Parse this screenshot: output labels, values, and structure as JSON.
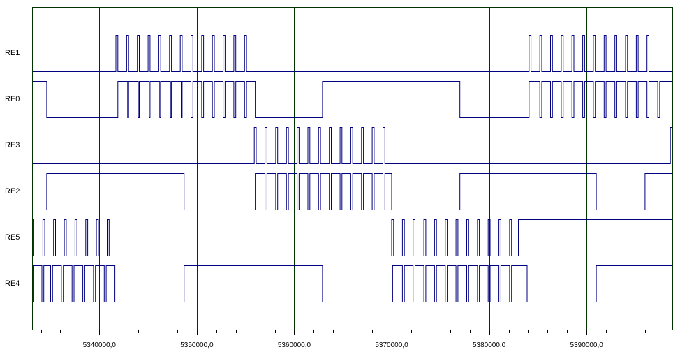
{
  "colors": {
    "background": "#ffffff",
    "signal": "#000080",
    "grid": "#003300",
    "frame": "#003300",
    "text": "#000000"
  },
  "chart_data": {
    "type": "line",
    "title": "",
    "xlabel": "",
    "ylabel": "",
    "grid": true,
    "xlim": [
      5333100,
      5398800
    ],
    "x_ticks": [
      5340000,
      5350000,
      5360000,
      5370000,
      5380000,
      5390000
    ],
    "x_tick_labels": [
      "5340000,0",
      "5350000,0",
      "5360000,0",
      "5370000,0",
      "5380000,0",
      "5390000,0"
    ],
    "series": [
      {
        "name": "RE1",
        "initial": 0,
        "transitions": [
          5341700,
          5341900,
          5342800,
          5343000,
          5343900,
          5344100,
          5345000,
          5345200,
          5346100,
          5346300,
          5347200,
          5347400,
          5348300,
          5348500,
          5349400,
          5349600,
          5350500,
          5350700,
          5351600,
          5351800,
          5352700,
          5352900,
          5353800,
          5354000,
          5354900,
          5355100,
          5384100,
          5384300,
          5385200,
          5385400,
          5386300,
          5386500,
          5387400,
          5387600,
          5388500,
          5388700,
          5389600,
          5389800,
          5390700,
          5390900,
          5391800,
          5392000,
          5392900,
          5393100,
          5394000,
          5394200,
          5395100,
          5395300,
          5396200,
          5396400
        ]
      },
      {
        "name": "RE0",
        "initial": 1,
        "transitions": [
          5334600,
          5341900,
          5342900,
          5343000,
          5344000,
          5344100,
          5345100,
          5345200,
          5346200,
          5346300,
          5347300,
          5347400,
          5348400,
          5348500,
          5349400,
          5349600,
          5350500,
          5350700,
          5351600,
          5351800,
          5352700,
          5352900,
          5353800,
          5354000,
          5354900,
          5355100,
          5356000,
          5362900,
          5377000,
          5384100,
          5385200,
          5385400,
          5386300,
          5386500,
          5387400,
          5387600,
          5388500,
          5388700,
          5389600,
          5389800,
          5390700,
          5390900,
          5391800,
          5392000,
          5392900,
          5393100,
          5394000,
          5394200,
          5395100,
          5395300,
          5396200,
          5396400,
          5397300,
          5397500
        ]
      },
      {
        "name": "RE3",
        "initial": 0,
        "transitions": [
          5355900,
          5356100,
          5357000,
          5357200,
          5358100,
          5358300,
          5359200,
          5359400,
          5360300,
          5360500,
          5361400,
          5361600,
          5362500,
          5362700,
          5363600,
          5363800,
          5364700,
          5364900,
          5365800,
          5366000,
          5366900,
          5367100,
          5368000,
          5368200,
          5369100,
          5369300,
          5398600,
          5398800
        ]
      },
      {
        "name": "RE2",
        "initial": 0,
        "transitions": [
          5334600,
          5348700,
          5356000,
          5357000,
          5357200,
          5358100,
          5358300,
          5359200,
          5359400,
          5360300,
          5360500,
          5361400,
          5361600,
          5362500,
          5362700,
          5363600,
          5363800,
          5364700,
          5364900,
          5365800,
          5366000,
          5366900,
          5367100,
          5368000,
          5368200,
          5369100,
          5369300,
          5370000,
          5377000,
          5391000,
          5396000
        ]
      },
      {
        "name": "RE5",
        "initial": 1,
        "transitions": [
          5333200,
          5334200,
          5334400,
          5335300,
          5335500,
          5336400,
          5336600,
          5337500,
          5337700,
          5338600,
          5338800,
          5339700,
          5339900,
          5340800,
          5341000,
          5370000,
          5370200,
          5371100,
          5371300,
          5372200,
          5372400,
          5373300,
          5373500,
          5374400,
          5374600,
          5375500,
          5375700,
          5376600,
          5376800,
          5377700,
          5377900,
          5378800,
          5379000,
          5379900,
          5380100,
          5381000,
          5381200,
          5382100,
          5382300,
          5383000
        ]
      },
      {
        "name": "RE4",
        "initial": 0,
        "transitions": [
          5333200,
          5334100,
          5334300,
          5335000,
          5335200,
          5336100,
          5336300,
          5337200,
          5337400,
          5338300,
          5338500,
          5339400,
          5339600,
          5340500,
          5340700,
          5341600,
          5348700,
          5362900,
          5370100,
          5371100,
          5371300,
          5372200,
          5372400,
          5373300,
          5373500,
          5374400,
          5374600,
          5375500,
          5375700,
          5376600,
          5376800,
          5377700,
          5377900,
          5378800,
          5379000,
          5379900,
          5380100,
          5381000,
          5381200,
          5382100,
          5382300,
          5383900,
          5391000
        ]
      }
    ]
  }
}
